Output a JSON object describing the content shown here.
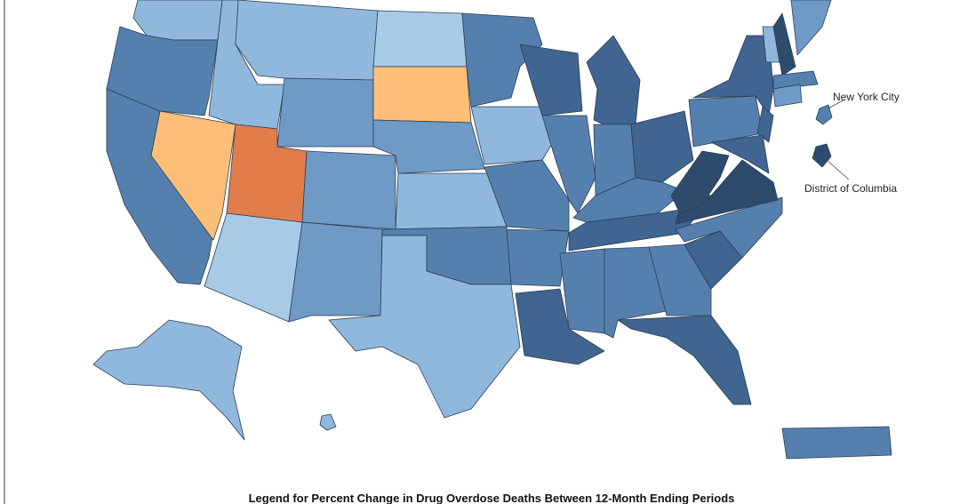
{
  "annotations": {
    "new_york_city": "New York City",
    "district_of_columbia": "District of Columbia"
  },
  "legend": {
    "title": "Legend for Percent Change in Drug Overdose Deaths Between 12-Month Ending Periods"
  }
}
